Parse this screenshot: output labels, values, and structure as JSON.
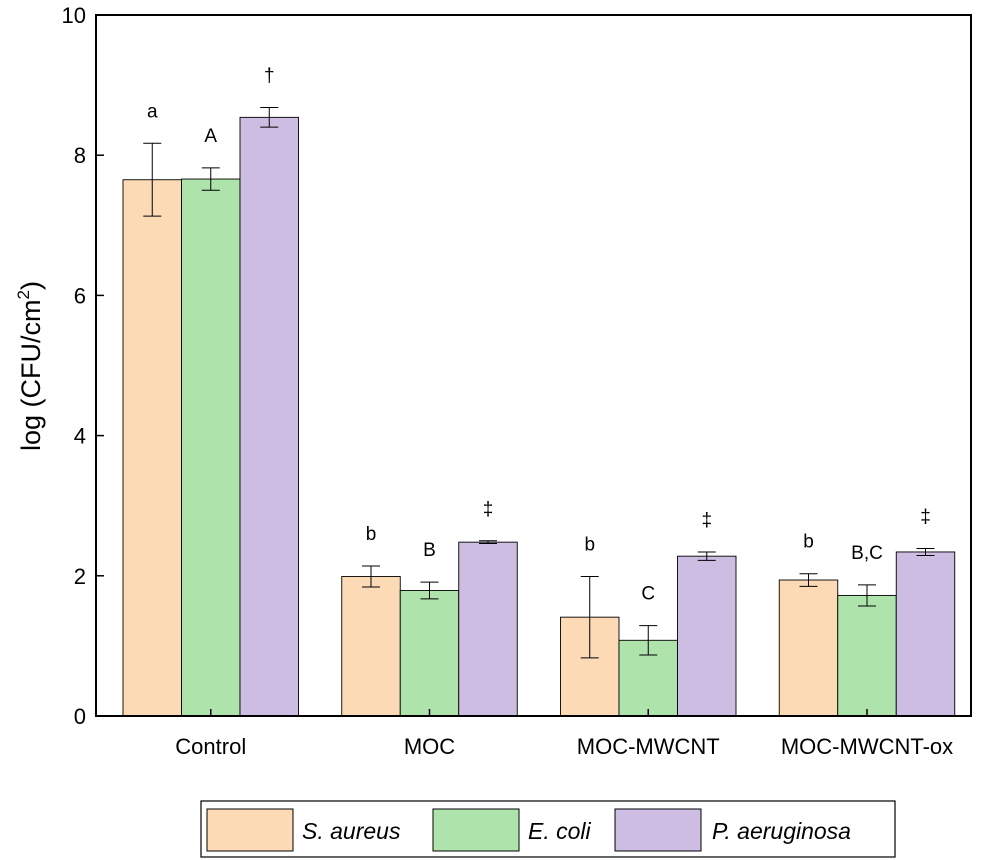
{
  "chart_data": {
    "type": "bar",
    "categories": [
      "Control",
      "MOC",
      "MOC-MWCNT",
      "MOC-MWCNT-ox"
    ],
    "ylabel_main": "log (CFU/cm",
    "ylabel_sup": "2",
    "ylabel_close": ")",
    "ylim": [
      0,
      10
    ],
    "yticks": [
      "0",
      "2",
      "4",
      "6",
      "8",
      "10"
    ],
    "grid": false,
    "legend_position": "bottom",
    "series": [
      {
        "name": "S. aureus",
        "color": "#fcdab6",
        "values": [
          7.65,
          1.99,
          1.41,
          1.94
        ],
        "errors": [
          0.52,
          0.15,
          0.58,
          0.09
        ],
        "sig_labels": [
          "a",
          "b",
          "b",
          "b"
        ]
      },
      {
        "name": "E. coli",
        "color": "#aee3ac",
        "values": [
          7.66,
          1.79,
          1.08,
          1.72
        ],
        "errors": [
          0.16,
          0.12,
          0.21,
          0.15
        ],
        "sig_labels": [
          "A",
          "B",
          "C",
          "B,C"
        ]
      },
      {
        "name": "P. aeruginosa",
        "color": "#cdbde3",
        "values": [
          8.54,
          2.48,
          2.28,
          2.34
        ],
        "errors": [
          0.14,
          0.02,
          0.06,
          0.05
        ],
        "sig_labels": [
          "†",
          "‡",
          "‡",
          "‡"
        ]
      }
    ]
  }
}
